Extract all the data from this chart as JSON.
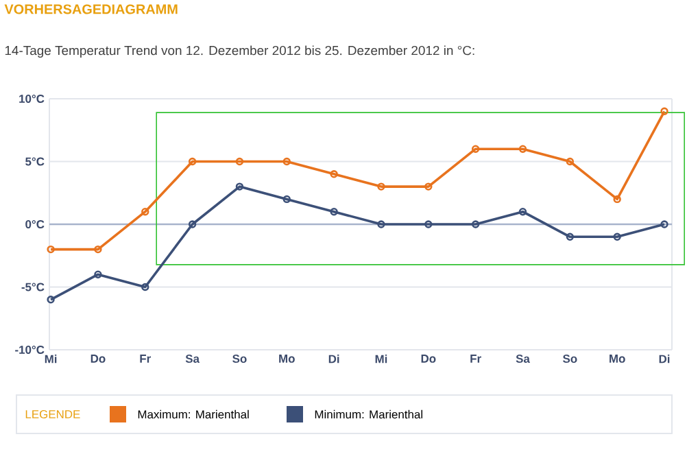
{
  "chart_data": {
    "type": "line",
    "title": "VORHERSAGEDIAGRAMM",
    "subtitle": "14-Tage Temperatur Trend von 12. Dezember 2012 bis 25. Dezember 2012 in °C:",
    "categories": [
      "Mi",
      "Do",
      "Fr",
      "Sa",
      "So",
      "Mo",
      "Di",
      "Mi",
      "Do",
      "Fr",
      "Sa",
      "So",
      "Mo",
      "Di"
    ],
    "series": [
      {
        "name": "Maximum: Marienthal",
        "color": "#e8731e",
        "values": [
          -2,
          -2,
          1,
          5,
          5,
          5,
          4,
          3,
          3,
          6,
          6,
          5,
          2,
          9
        ]
      },
      {
        "name": "Minimum: Marienthal",
        "color": "#3c5078",
        "values": [
          -6,
          -4,
          -5,
          0,
          3,
          2,
          1,
          0,
          0,
          0,
          1,
          -1,
          -1,
          0
        ]
      }
    ],
    "ylim": [
      -10,
      10
    ],
    "yticks": [
      {
        "value": -10,
        "label": "-10°C"
      },
      {
        "value": -5,
        "label": "-5°C"
      },
      {
        "value": 0,
        "label": "0°C"
      },
      {
        "value": 5,
        "label": "5°C"
      },
      {
        "value": 10,
        "label": "10°C"
      }
    ],
    "ref_lines": [
      {
        "axis": "y",
        "value": 0,
        "color": "#a8b4cc"
      }
    ],
    "grid": "y",
    "legend": "bottom",
    "legend_title": "LEGENDE",
    "marker": "circle",
    "line_style": "solid"
  }
}
